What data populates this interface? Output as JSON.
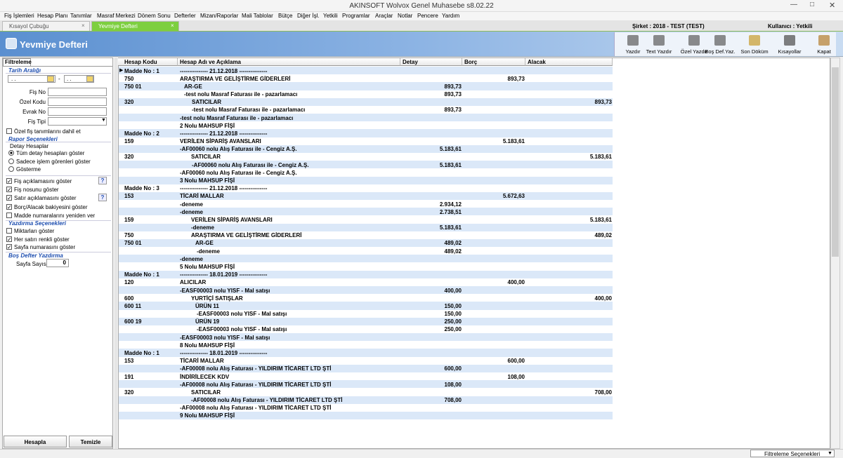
{
  "window": {
    "title": "AKINSOFT Wolvox Genel Muhasebe s8.02.22"
  },
  "menu": [
    "Fiş İşlemleri",
    "Hesap Planı",
    "Tanımlar",
    "Masraf Merkezi",
    "Dönem Sonu",
    "Defterler",
    "Mizan/Raporlar",
    "Mali Tablolar",
    "Bütçe",
    "Diğer İşl.",
    "Yetkili",
    "Programlar",
    "Araçlar",
    "Notlar",
    "Pencere",
    "Yardım"
  ],
  "tabs": [
    {
      "label": "Kısayol Çubuğu",
      "active": false
    },
    {
      "label": "Yevmiye Defteri",
      "active": true
    }
  ],
  "session": {
    "company": "Şirket : 2018 - TEST (TEST)",
    "user": "Kullanıcı : Yetkili"
  },
  "header": {
    "title": "Yevmiye Defteri"
  },
  "toolbar": [
    "Yazdır",
    "Text Yazdır",
    "Özel Yazdır",
    "Boş Def.Yaz.",
    "Son Döküm",
    "Kısayollar",
    "Kapat"
  ],
  "filter": {
    "tab": "Filtreleme",
    "date_range": {
      "label": "Tarih Aralığı",
      "start": ". .",
      "separator": "-",
      "end": ". ."
    },
    "fields": [
      "Fiş No",
      "Özel Kodu",
      "Evrak No",
      "Fiş Tipi"
    ],
    "include_special": {
      "label": "Özel fiş tanımlarını dahil et",
      "checked": false
    },
    "report_options": {
      "title": "Rapor Seçenekleri",
      "detail_title": "Detay Hesaplar",
      "radios": [
        {
          "label": "Tüm detay hesapları göster",
          "selected": true
        },
        {
          "label": "Sadece işlem görenleri göster",
          "selected": false
        },
        {
          "label": "Gösterme",
          "selected": false
        }
      ],
      "checks": [
        {
          "label": "Fiş açıklamasını göster",
          "checked": true,
          "help": "?"
        },
        {
          "label": "Fiş nosunu göster",
          "checked": true
        },
        {
          "label": "Satır açıklamasını göster",
          "checked": true,
          "help": "?"
        },
        {
          "label": "Borç/Alacak bakiyesini göster",
          "checked": true
        },
        {
          "label": "Madde numaralarını yeniden ver",
          "checked": false
        }
      ]
    },
    "print_options": {
      "title": "Yazdırma Seçenekleri",
      "checks": [
        {
          "label": "Miktarları göster",
          "checked": false
        },
        {
          "label": "Her satırı renkli göster",
          "checked": true
        },
        {
          "label": "Sayfa numarasını göster",
          "checked": true
        }
      ]
    },
    "blank_book": {
      "title": "Boş Defter Yazdırma",
      "page_count_label": "Sayfa Sayısı",
      "page_count": 0
    },
    "buttons": [
      "Hesapla",
      "Temizle"
    ]
  },
  "grid": {
    "columns": [
      "Hesap Kodu",
      "Hesap Adı ve Açıklama",
      "Detay",
      "Borç",
      "Alacak"
    ],
    "rows": [
      [
        "Madde No : 1",
        "--------------- 21.12.2018 ---------------",
        null,
        null,
        null
      ],
      [
        "750",
        "ARAŞTIRMA VE GELİŞTİRME GİDERLERİ",
        null,
        "893,73",
        null
      ],
      [
        "750 01",
        "AR-GE",
        "893,73",
        null,
        null
      ],
      [
        null,
        "-test nolu Masraf Faturası ile - pazarlamacı",
        "893,73",
        null,
        null
      ],
      [
        "320",
        "SATICILAR",
        null,
        null,
        "893,73"
      ],
      [
        null,
        "-test nolu Masraf Faturası ile - pazarlamacı",
        "893,73",
        null,
        null
      ],
      [
        null,
        "-test nolu Masraf Faturası ile - pazarlamacı",
        null,
        null,
        null
      ],
      [
        null,
        "2 Nolu MAHSUP FİŞİ",
        null,
        null,
        null
      ],
      [
        "Madde No : 2",
        "--------------- 21.12.2018 ---------------",
        null,
        null,
        null
      ],
      [
        "159",
        "VERİLEN SİPARİŞ AVANSLARI",
        null,
        "5.183,61",
        null
      ],
      [
        null,
        "-AF00060 nolu Alış Faturası ile - Cengiz A.Ş.",
        "5.183,61",
        null,
        null
      ],
      [
        "320",
        "SATICILAR",
        null,
        null,
        "5.183,61"
      ],
      [
        null,
        "-AF00060 nolu Alış Faturası ile - Cengiz A.Ş.",
        "5.183,61",
        null,
        null
      ],
      [
        null,
        "-AF00060 nolu Alış Faturası ile - Cengiz A.Ş.",
        null,
        null,
        null
      ],
      [
        null,
        "3 Nolu MAHSUP FİŞİ",
        null,
        null,
        null
      ],
      [
        "Madde No : 3",
        "--------------- 21.12.2018 ---------------",
        null,
        null,
        null
      ],
      [
        "153",
        "TİCARİ MALLAR",
        null,
        "5.672,63",
        null
      ],
      [
        null,
        "-deneme",
        "2.934,12",
        null,
        null
      ],
      [
        null,
        "-deneme",
        "2.738,51",
        null,
        null
      ],
      [
        "159",
        "VERİLEN SİPARİŞ AVANSLARI",
        null,
        null,
        "5.183,61"
      ],
      [
        null,
        "-deneme",
        "5.183,61",
        null,
        null
      ],
      [
        "750",
        "ARAŞTIRMA VE GELİŞTİRME GİDERLERİ",
        null,
        null,
        "489,02"
      ],
      [
        "750 01",
        "AR-GE",
        "489,02",
        null,
        null
      ],
      [
        null,
        "-deneme",
        "489,02",
        null,
        null
      ],
      [
        null,
        "-deneme",
        null,
        null,
        null
      ],
      [
        null,
        "5 Nolu MAHSUP FİŞİ",
        null,
        null,
        null
      ],
      [
        "Madde No : 1",
        "--------------- 18.01.2019 ---------------",
        null,
        null,
        null
      ],
      [
        "120",
        "ALICILAR",
        null,
        "400,00",
        null
      ],
      [
        null,
        "-EASF00003 nolu YISF - Mal satışı",
        "400,00",
        null,
        null
      ],
      [
        "600",
        "YURTİÇİ SATIŞLAR",
        null,
        null,
        "400,00"
      ],
      [
        "600 11",
        "ÜRÜN 11",
        "150,00",
        null,
        null
      ],
      [
        null,
        "-EASF00003 nolu YISF - Mal satışı",
        "150,00",
        null,
        null
      ],
      [
        "600 19",
        "ÜRÜN 19",
        "250,00",
        null,
        null
      ],
      [
        null,
        "-EASF00003 nolu YISF - Mal satışı",
        "250,00",
        null,
        null
      ],
      [
        null,
        "-EASF00003 nolu YISF - Mal satışı",
        null,
        null,
        null
      ],
      [
        null,
        "8 Nolu MAHSUP FİŞİ",
        null,
        null,
        null
      ],
      [
        "Madde No : 1",
        "--------------- 18.01.2019 ---------------",
        null,
        null,
        null
      ],
      [
        "153",
        "TİCARİ MALLAR",
        null,
        "600,00",
        null
      ],
      [
        null,
        "-AF00008 nolu Alış Faturası - YILDIRIM TİCARET LTD ŞTİ",
        "600,00",
        null,
        null
      ],
      [
        "191",
        "İNDİRİLECEK KDV",
        null,
        "108,00",
        null
      ],
      [
        null,
        "-AF00008 nolu Alış Faturası - YILDIRIM TİCARET LTD ŞTİ",
        "108,00",
        null,
        null
      ],
      [
        "320",
        "SATICILAR",
        null,
        null,
        "708,00"
      ],
      [
        null,
        "-AF00008 nolu Alış Faturası - YILDIRIM TİCARET LTD ŞTİ",
        "708,00",
        null,
        null
      ],
      [
        null,
        "-AF00008 nolu Alış Faturası - YILDIRIM TİCARET LTD ŞTİ",
        null,
        null,
        null
      ],
      [
        null,
        "9 Nolu MAHSUP FİŞİ",
        null,
        null,
        null
      ]
    ]
  },
  "status": {
    "text": "Filtreleme Seçenekleri"
  }
}
